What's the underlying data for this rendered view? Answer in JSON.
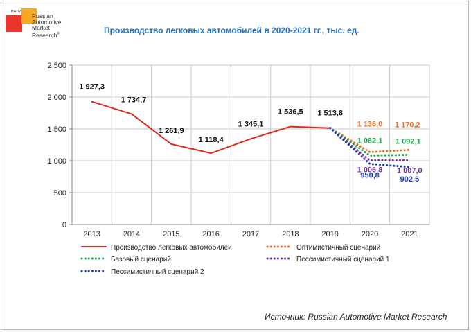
{
  "logo": {
    "tag": "НАПИ",
    "name_lines": [
      "Russian",
      "Automotive",
      "Market",
      "Research"
    ],
    "mark": "®"
  },
  "source_text": "Источник: Russian Automotive Market Research",
  "chart_data": {
    "type": "line",
    "title": "Производство легковых автомобилей в 2020-2021 гг., тыс. ед.",
    "categories": [
      "2013",
      "2014",
      "2015",
      "2016",
      "2017",
      "2018",
      "2019",
      "2020",
      "2021"
    ],
    "ylim": [
      0,
      2500
    ],
    "yticks": [
      0,
      500,
      1000,
      1500,
      2000,
      2500
    ],
    "ytick_labels": [
      "0",
      "500",
      "1 000",
      "1 500",
      "2 000",
      "2 500"
    ],
    "grid": true,
    "legend_position": "bottom",
    "series": [
      {
        "name": "Производство легковых автомобилей",
        "color": "#e3261f",
        "style": "solid",
        "x": [
          "2013",
          "2014",
          "2015",
          "2016",
          "2017",
          "2018",
          "2019"
        ],
        "values": [
          1927.3,
          1734.7,
          1261.9,
          1118.4,
          1345.1,
          1536.5,
          1513.8
        ],
        "labels": [
          "1 927,3",
          "1 734,7",
          "1 261,9",
          "1 118,4",
          "1 345,1",
          "1 536,5",
          "1 513,8"
        ]
      },
      {
        "name": "Оптимистичный сценарий",
        "color": "#ef6c1f",
        "style": "dotted",
        "x": [
          "2019",
          "2020",
          "2021"
        ],
        "values": [
          1513.8,
          1136.0,
          1170.2
        ],
        "labels": [
          "",
          "1 136,0",
          "1 170,2"
        ]
      },
      {
        "name": "Базовый сценарий",
        "color": "#18a84b",
        "style": "dotted",
        "x": [
          "2019",
          "2020",
          "2021"
        ],
        "values": [
          1513.8,
          1082.1,
          1092.1
        ],
        "labels": [
          "",
          "1 082,1",
          "1 092,1"
        ]
      },
      {
        "name": "Пессимистичный сценарий 1",
        "color": "#7030a0",
        "style": "dotted",
        "x": [
          "2019",
          "2020",
          "2021"
        ],
        "values": [
          1513.8,
          1006.8,
          1007.0
        ],
        "labels": [
          "",
          "1 006,8",
          "1 007,0"
        ]
      },
      {
        "name": "Пессимистичный сценарий 2",
        "color": "#1f3fb8",
        "style": "dotted",
        "x": [
          "2019",
          "2020",
          "2021"
        ],
        "values": [
          1513.8,
          950.8,
          902.5
        ],
        "labels": [
          "",
          "950,8",
          "902,5"
        ]
      }
    ]
  }
}
